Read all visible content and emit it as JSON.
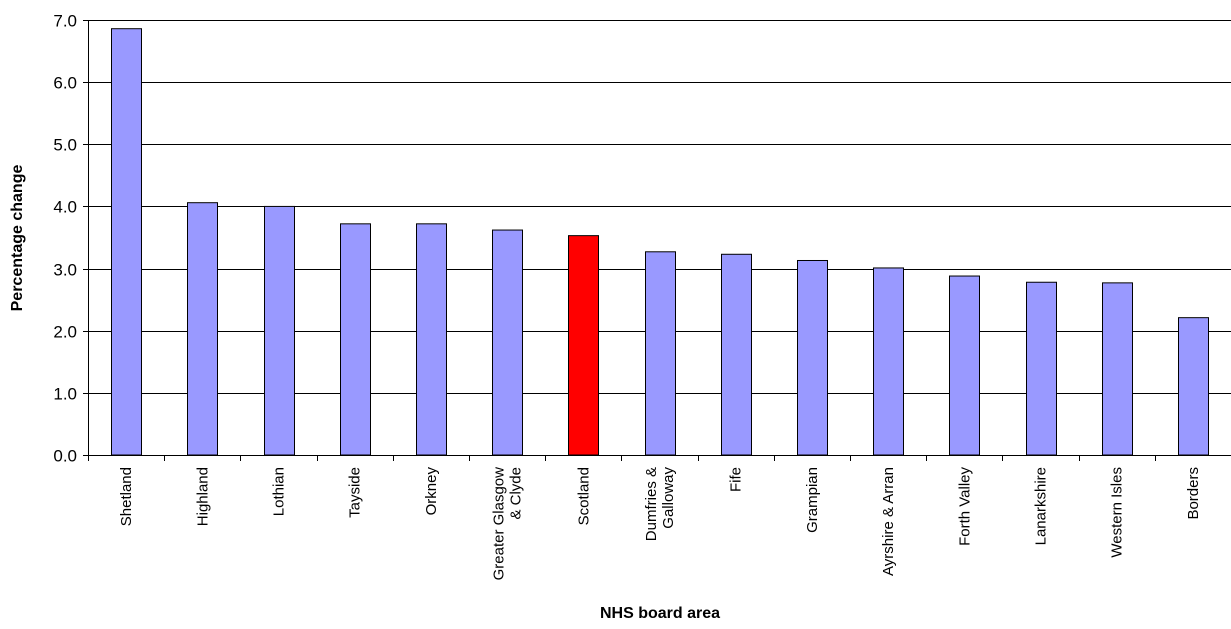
{
  "chart_data": {
    "type": "bar",
    "title": "",
    "xlabel": "NHS board area",
    "ylabel": "Percentage change",
    "ylim": [
      0,
      7
    ],
    "ytick_step": 1,
    "ytick_labels": [
      "0.0",
      "1.0",
      "2.0",
      "3.0",
      "4.0",
      "5.0",
      "6.0",
      "7.0"
    ],
    "grid": true,
    "legend": "none",
    "categories": [
      [
        "Shetland"
      ],
      [
        "Highland"
      ],
      [
        "Lothian"
      ],
      [
        "Tayside"
      ],
      [
        "Orkney"
      ],
      [
        "Greater Glasgow",
        "& Clyde"
      ],
      [
        "Scotland"
      ],
      [
        "Dumfries &",
        "Galloway"
      ],
      [
        "Fife"
      ],
      [
        "Grampian"
      ],
      [
        "Ayrshire & Arran"
      ],
      [
        "Forth Valley"
      ],
      [
        "Lanarkshire"
      ],
      [
        "Western Isles"
      ],
      [
        "Borders"
      ]
    ],
    "values": [
      6.86,
      4.06,
      4.0,
      3.72,
      3.72,
      3.62,
      3.53,
      3.27,
      3.23,
      3.13,
      3.01,
      2.88,
      2.78,
      2.77,
      2.21
    ],
    "highlight_category": "Scotland",
    "colors": {
      "bar": "#9999ff",
      "highlight": "#ff0000",
      "bar_stroke": "#000000",
      "grid": "#000000"
    }
  }
}
